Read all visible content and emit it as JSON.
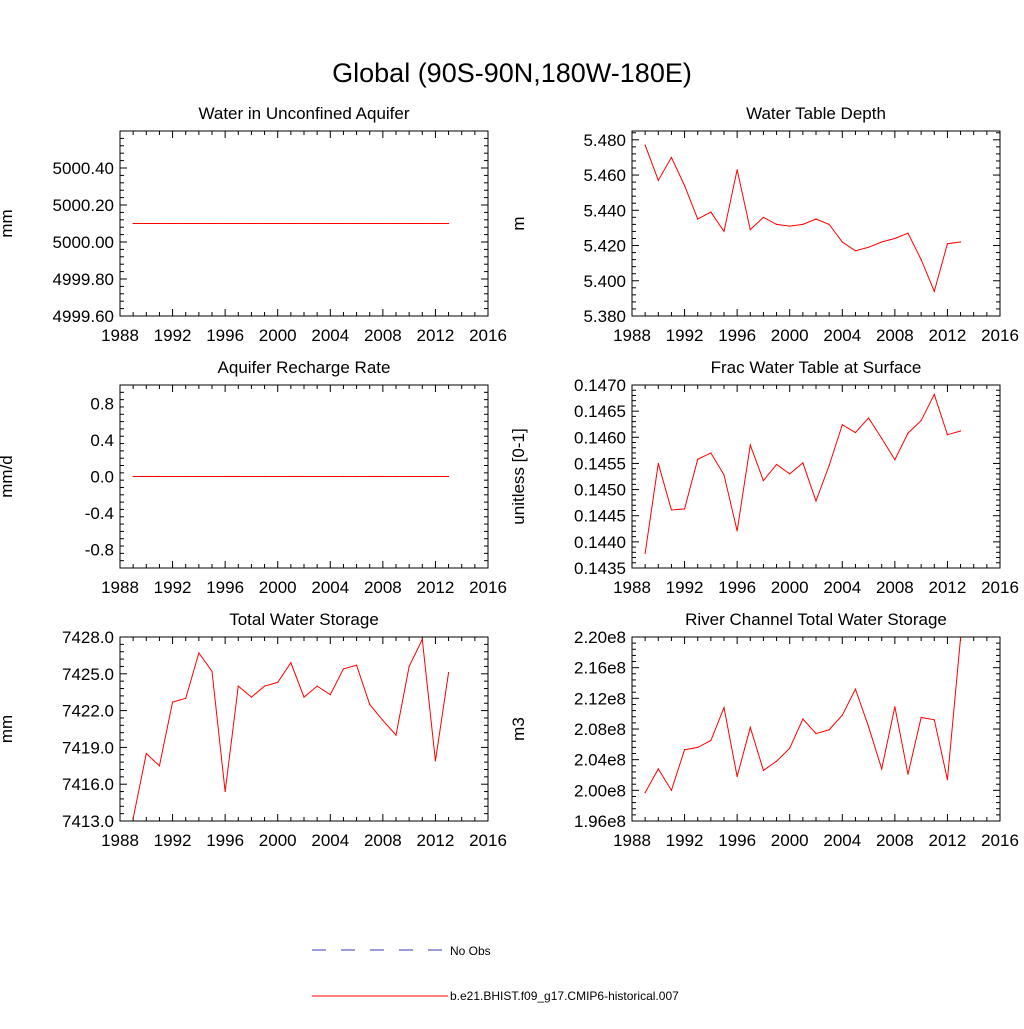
{
  "title": "Global (90S-90N,180W-180E)",
  "colors": {
    "series": "#ff0000",
    "obs": "#3a3ab8",
    "axis": "#000000"
  },
  "legend": {
    "items": [
      {
        "label": "No Obs",
        "style": "dashed",
        "color": "#3a3ab8"
      },
      {
        "label": "b.e21.BHIST.f09_g17.CMIP6-historical.007",
        "style": "solid",
        "color": "#ff0000"
      }
    ]
  },
  "chart_data": [
    {
      "type": "line",
      "title": "Water in Unconfined Aquifer",
      "xlabel": "",
      "ylabel": "mm",
      "xlim": [
        1988,
        2016
      ],
      "ylim": [
        4999.6,
        5000.6
      ],
      "xticks": [
        1988,
        1992,
        1996,
        2000,
        2004,
        2008,
        2012,
        2016
      ],
      "yticks": [
        4999.6,
        4999.8,
        5000.0,
        5000.2,
        5000.4
      ],
      "ytick_labels": [
        "4999.60",
        "4999.80",
        "5000.00",
        "5000.20",
        "5000.40"
      ],
      "x": [
        1989,
        1990,
        1991,
        1992,
        1993,
        1994,
        1995,
        1996,
        1997,
        1998,
        1999,
        2000,
        2001,
        2002,
        2003,
        2004,
        2005,
        2006,
        2007,
        2008,
        2009,
        2010,
        2011,
        2012,
        2013
      ],
      "series": [
        {
          "name": "b.e21.BHIST.f09_g17.CMIP6-historical.007",
          "values": [
            5000.1,
            5000.1,
            5000.1,
            5000.1,
            5000.1,
            5000.1,
            5000.1,
            5000.1,
            5000.1,
            5000.1,
            5000.1,
            5000.1,
            5000.1,
            5000.1,
            5000.1,
            5000.1,
            5000.1,
            5000.1,
            5000.1,
            5000.1,
            5000.1,
            5000.1,
            5000.1,
            5000.1,
            5000.1
          ]
        }
      ]
    },
    {
      "type": "line",
      "title": "Water Table Depth",
      "xlabel": "",
      "ylabel": "m",
      "xlim": [
        1988,
        2016
      ],
      "ylim": [
        5.38,
        5.485
      ],
      "xticks": [
        1988,
        1992,
        1996,
        2000,
        2004,
        2008,
        2012,
        2016
      ],
      "yticks": [
        5.38,
        5.4,
        5.42,
        5.44,
        5.46,
        5.48
      ],
      "ytick_labels": [
        "5.380",
        "5.400",
        "5.420",
        "5.440",
        "5.460",
        "5.480"
      ],
      "x": [
        1989,
        1990,
        1991,
        1992,
        1993,
        1994,
        1995,
        1996,
        1997,
        1998,
        1999,
        2000,
        2001,
        2002,
        2003,
        2004,
        2005,
        2006,
        2007,
        2008,
        2009,
        2010,
        2011,
        2012,
        2013
      ],
      "series": [
        {
          "name": "b.e21.BHIST.f09_g17.CMIP6-historical.007",
          "values": [
            5.477,
            5.457,
            5.47,
            5.454,
            5.435,
            5.439,
            5.428,
            5.463,
            5.429,
            5.436,
            5.432,
            5.431,
            5.432,
            5.435,
            5.432,
            5.422,
            5.417,
            5.419,
            5.422,
            5.424,
            5.427,
            5.412,
            5.394,
            5.421,
            5.422
          ]
        }
      ]
    },
    {
      "type": "line",
      "title": "Aquifer Recharge Rate",
      "xlabel": "",
      "ylabel": "mm/d",
      "xlim": [
        1988,
        2016
      ],
      "ylim": [
        -1.0,
        1.0
      ],
      "xticks": [
        1988,
        1992,
        1996,
        2000,
        2004,
        2008,
        2012,
        2016
      ],
      "yticks": [
        -0.8,
        -0.4,
        0.0,
        0.4,
        0.8
      ],
      "ytick_labels": [
        "-0.8",
        "-0.4",
        "0.0",
        "0.4",
        "0.8"
      ],
      "x": [
        1989,
        1990,
        1991,
        1992,
        1993,
        1994,
        1995,
        1996,
        1997,
        1998,
        1999,
        2000,
        2001,
        2002,
        2003,
        2004,
        2005,
        2006,
        2007,
        2008,
        2009,
        2010,
        2011,
        2012,
        2013
      ],
      "series": [
        {
          "name": "b.e21.BHIST.f09_g17.CMIP6-historical.007",
          "values": [
            0,
            0,
            0,
            0,
            0,
            0,
            0,
            0,
            0,
            0,
            0,
            0,
            0,
            0,
            0,
            0,
            0,
            0,
            0,
            0,
            0,
            0,
            0,
            0,
            0
          ]
        }
      ]
    },
    {
      "type": "line",
      "title": "Frac Water Table at Surface",
      "xlabel": "",
      "ylabel": "unitless [0-1]",
      "xlim": [
        1988,
        2016
      ],
      "ylim": [
        0.1435,
        0.147
      ],
      "xticks": [
        1988,
        1992,
        1996,
        2000,
        2004,
        2008,
        2012,
        2016
      ],
      "yticks": [
        0.1435,
        0.144,
        0.1445,
        0.145,
        0.1455,
        0.146,
        0.1465,
        0.147
      ],
      "ytick_labels": [
        "0.1435",
        "0.1440",
        "0.1445",
        "0.1450",
        "0.1455",
        "0.1460",
        "0.1465",
        "0.1470"
      ],
      "x": [
        1989,
        1990,
        1991,
        1992,
        1993,
        1994,
        1995,
        1996,
        1997,
        1998,
        1999,
        2000,
        2001,
        2002,
        2003,
        2004,
        2005,
        2006,
        2007,
        2008,
        2009,
        2010,
        2011,
        2012,
        2013
      ],
      "series": [
        {
          "name": "b.e21.BHIST.f09_g17.CMIP6-historical.007",
          "values": [
            0.14378,
            0.1455,
            0.14461,
            0.14463,
            0.14558,
            0.1457,
            0.14528,
            0.14421,
            0.14585,
            0.14517,
            0.14548,
            0.1453,
            0.14551,
            0.14478,
            0.14546,
            0.14624,
            0.14609,
            0.14637,
            0.14598,
            0.14557,
            0.14608,
            0.14632,
            0.14682,
            0.14605,
            0.14612
          ]
        }
      ]
    },
    {
      "type": "line",
      "title": "Total Water Storage",
      "xlabel": "",
      "ylabel": "mm",
      "xlim": [
        1988,
        2016
      ],
      "ylim": [
        7413.0,
        7428.0
      ],
      "xticks": [
        1988,
        1992,
        1996,
        2000,
        2004,
        2008,
        2012,
        2016
      ],
      "yticks": [
        7413,
        7416,
        7419,
        7422,
        7425,
        7428
      ],
      "ytick_labels": [
        "7413.0",
        "7416.0",
        "7419.0",
        "7422.0",
        "7425.0",
        "7428.0"
      ],
      "x": [
        1989,
        1990,
        1991,
        1992,
        1993,
        1994,
        1995,
        1996,
        1997,
        1998,
        1999,
        2000,
        2001,
        2002,
        2003,
        2004,
        2005,
        2006,
        2007,
        2008,
        2009,
        2010,
        2011,
        2012,
        2013
      ],
      "series": [
        {
          "name": "b.e21.BHIST.f09_g17.CMIP6-historical.007",
          "values": [
            7413.2,
            7418.5,
            7417.5,
            7422.7,
            7423.0,
            7426.7,
            7425.2,
            7415.4,
            7424.0,
            7423.1,
            7424.0,
            7424.3,
            7425.9,
            7423.1,
            7424.0,
            7423.3,
            7425.4,
            7425.7,
            7422.5,
            7421.2,
            7420.0,
            7425.6,
            7427.8,
            7417.9,
            7425.1
          ]
        }
      ]
    },
    {
      "type": "line",
      "title": "River Channel Total Water Storage",
      "xlabel": "",
      "ylabel": "m3",
      "xlim": [
        1988,
        2016
      ],
      "ylim": [
        196000000.0,
        220000000.0
      ],
      "xticks": [
        1988,
        1992,
        1996,
        2000,
        2004,
        2008,
        2012,
        2016
      ],
      "yticks": [
        196000000.0,
        200000000.0,
        204000000.0,
        208000000.0,
        212000000.0,
        216000000.0,
        220000000.0
      ],
      "ytick_labels": [
        "1.96e8",
        "2.00e8",
        "2.04e8",
        "2.08e8",
        "2.12e8",
        "2.16e8",
        "2.20e8"
      ],
      "x": [
        1989,
        1990,
        1991,
        1992,
        1993,
        1994,
        1995,
        1996,
        1997,
        1998,
        1999,
        2000,
        2001,
        2002,
        2003,
        2004,
        2005,
        2006,
        2007,
        2008,
        2009,
        2010,
        2011,
        2012,
        2013
      ],
      "series": [
        {
          "name": "b.e21.BHIST.f09_g17.CMIP6-historical.007",
          "values": [
            199700000.0,
            202800000.0,
            200000000.0,
            205300000.0,
            205600000.0,
            206500000.0,
            210800000.0,
            201800000.0,
            208200000.0,
            202600000.0,
            203800000.0,
            205500000.0,
            209300000.0,
            207400000.0,
            207900000.0,
            209800000.0,
            213200000.0,
            208300000.0,
            202800000.0,
            210900000.0,
            202100000.0,
            209500000.0,
            209200000.0,
            201400000.0,
            219900000.0
          ]
        }
      ]
    }
  ]
}
